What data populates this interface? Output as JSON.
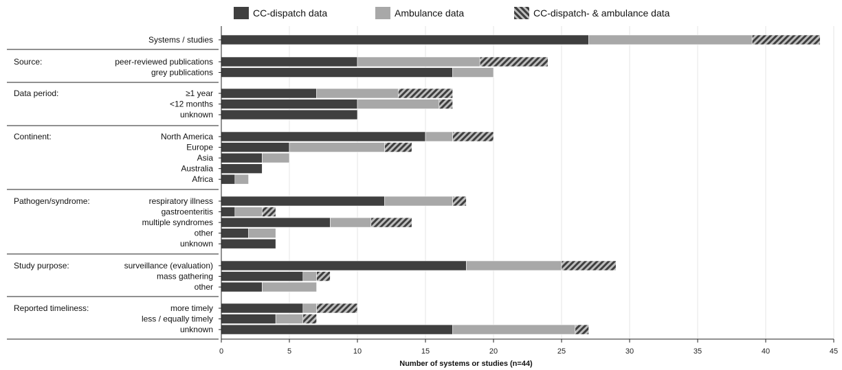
{
  "legend": {
    "cc": "CC-dispatch data",
    "amb": "Ambulance data",
    "both": "CC-dispatch- & ambulance data"
  },
  "colors": {
    "cc": "#3f3f3f",
    "amb": "#a8a8a8",
    "hatch_dark": "#3f3f3f",
    "hatch_light": "#bdbdbd"
  },
  "chart_data": {
    "type": "bar",
    "orientation": "horizontal",
    "stacked": true,
    "xlabel": "Number of systems or studies   (n=44)",
    "xlim": [
      0,
      45
    ],
    "x_ticks": [
      0,
      5,
      10,
      15,
      20,
      25,
      30,
      35,
      40,
      45
    ],
    "grid": "vertical",
    "legend_position": "top",
    "series": [
      {
        "name": "CC-dispatch data",
        "key": "cc"
      },
      {
        "name": "Ambulance data",
        "key": "amb"
      },
      {
        "name": "CC-dispatch- & ambulance data",
        "key": "both"
      }
    ],
    "groups": [
      {
        "label": "",
        "rows": [
          {
            "label": "Systems / studies",
            "values": [
              27,
              12,
              5
            ]
          }
        ]
      },
      {
        "label": "Source:",
        "rows": [
          {
            "label": "peer-reviewed publications",
            "values": [
              10,
              9,
              5
            ]
          },
          {
            "label": "grey publications",
            "values": [
              17,
              3,
              0
            ]
          }
        ]
      },
      {
        "label": "Data period:",
        "rows": [
          {
            "label": "≥1 year",
            "values": [
              7,
              6,
              4
            ]
          },
          {
            "label": "<12 months",
            "values": [
              10,
              6,
              1
            ]
          },
          {
            "label": "unknown",
            "values": [
              10,
              0,
              0
            ]
          }
        ]
      },
      {
        "label": "Continent:",
        "rows": [
          {
            "label": "North America",
            "values": [
              15,
              2,
              3
            ]
          },
          {
            "label": "Europe",
            "values": [
              5,
              7,
              2
            ]
          },
          {
            "label": "Asia",
            "values": [
              3,
              2,
              0
            ]
          },
          {
            "label": "Australia",
            "values": [
              3,
              0,
              0
            ]
          },
          {
            "label": "Africa",
            "values": [
              1,
              1,
              0
            ]
          }
        ]
      },
      {
        "label": "Pathogen/syndrome:",
        "rows": [
          {
            "label": "respiratory illness",
            "values": [
              12,
              5,
              1
            ]
          },
          {
            "label": "gastroenteritis",
            "values": [
              1,
              2,
              1
            ]
          },
          {
            "label": "multiple syndromes",
            "values": [
              8,
              3,
              3
            ]
          },
          {
            "label": "other",
            "values": [
              2,
              2,
              0
            ]
          },
          {
            "label": "unknown",
            "values": [
              4,
              0,
              0
            ]
          }
        ]
      },
      {
        "label": "Study purpose:",
        "rows": [
          {
            "label": "surveillance (evaluation)",
            "values": [
              18,
              7,
              4
            ]
          },
          {
            "label": "mass gathering",
            "values": [
              6,
              1,
              1
            ]
          },
          {
            "label": "other",
            "values": [
              3,
              4,
              0
            ]
          }
        ]
      },
      {
        "label": "Reported timeliness:",
        "rows": [
          {
            "label": "more timely",
            "values": [
              6,
              1,
              3
            ]
          },
          {
            "label": "less / equally timely",
            "values": [
              4,
              2,
              1
            ]
          },
          {
            "label": "unknown",
            "values": [
              17,
              9,
              1
            ]
          }
        ]
      }
    ]
  }
}
